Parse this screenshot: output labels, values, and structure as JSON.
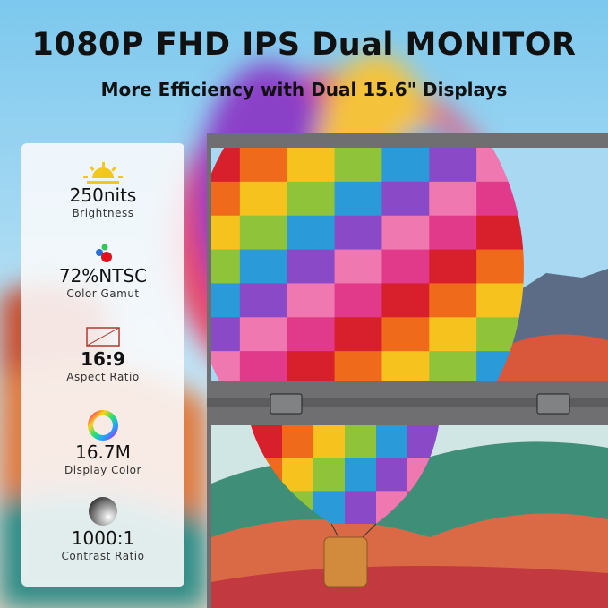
{
  "header": {
    "title": "1080P FHD IPS Dual MONITOR",
    "subtitle": "More Efficiency with Dual 15.6\" Displays"
  },
  "features": [
    {
      "icon": "sun-icon",
      "value": "250nits",
      "label": "Brightness"
    },
    {
      "icon": "rgb-dots-icon",
      "value": "72%NTSC",
      "label": "Color Gamut"
    },
    {
      "icon": "aspect-ratio-icon",
      "value": "16:9",
      "label": "Aspect Ratio"
    },
    {
      "icon": "color-wheel-icon",
      "value": "16.7M",
      "label": "Display Color"
    },
    {
      "icon": "contrast-icon",
      "value": "1000:1",
      "label": "Contrast Ratio"
    }
  ],
  "colors": {
    "sun": "#f2c81c",
    "frame": "#6f6f71",
    "sky": "#8fd0f0"
  }
}
